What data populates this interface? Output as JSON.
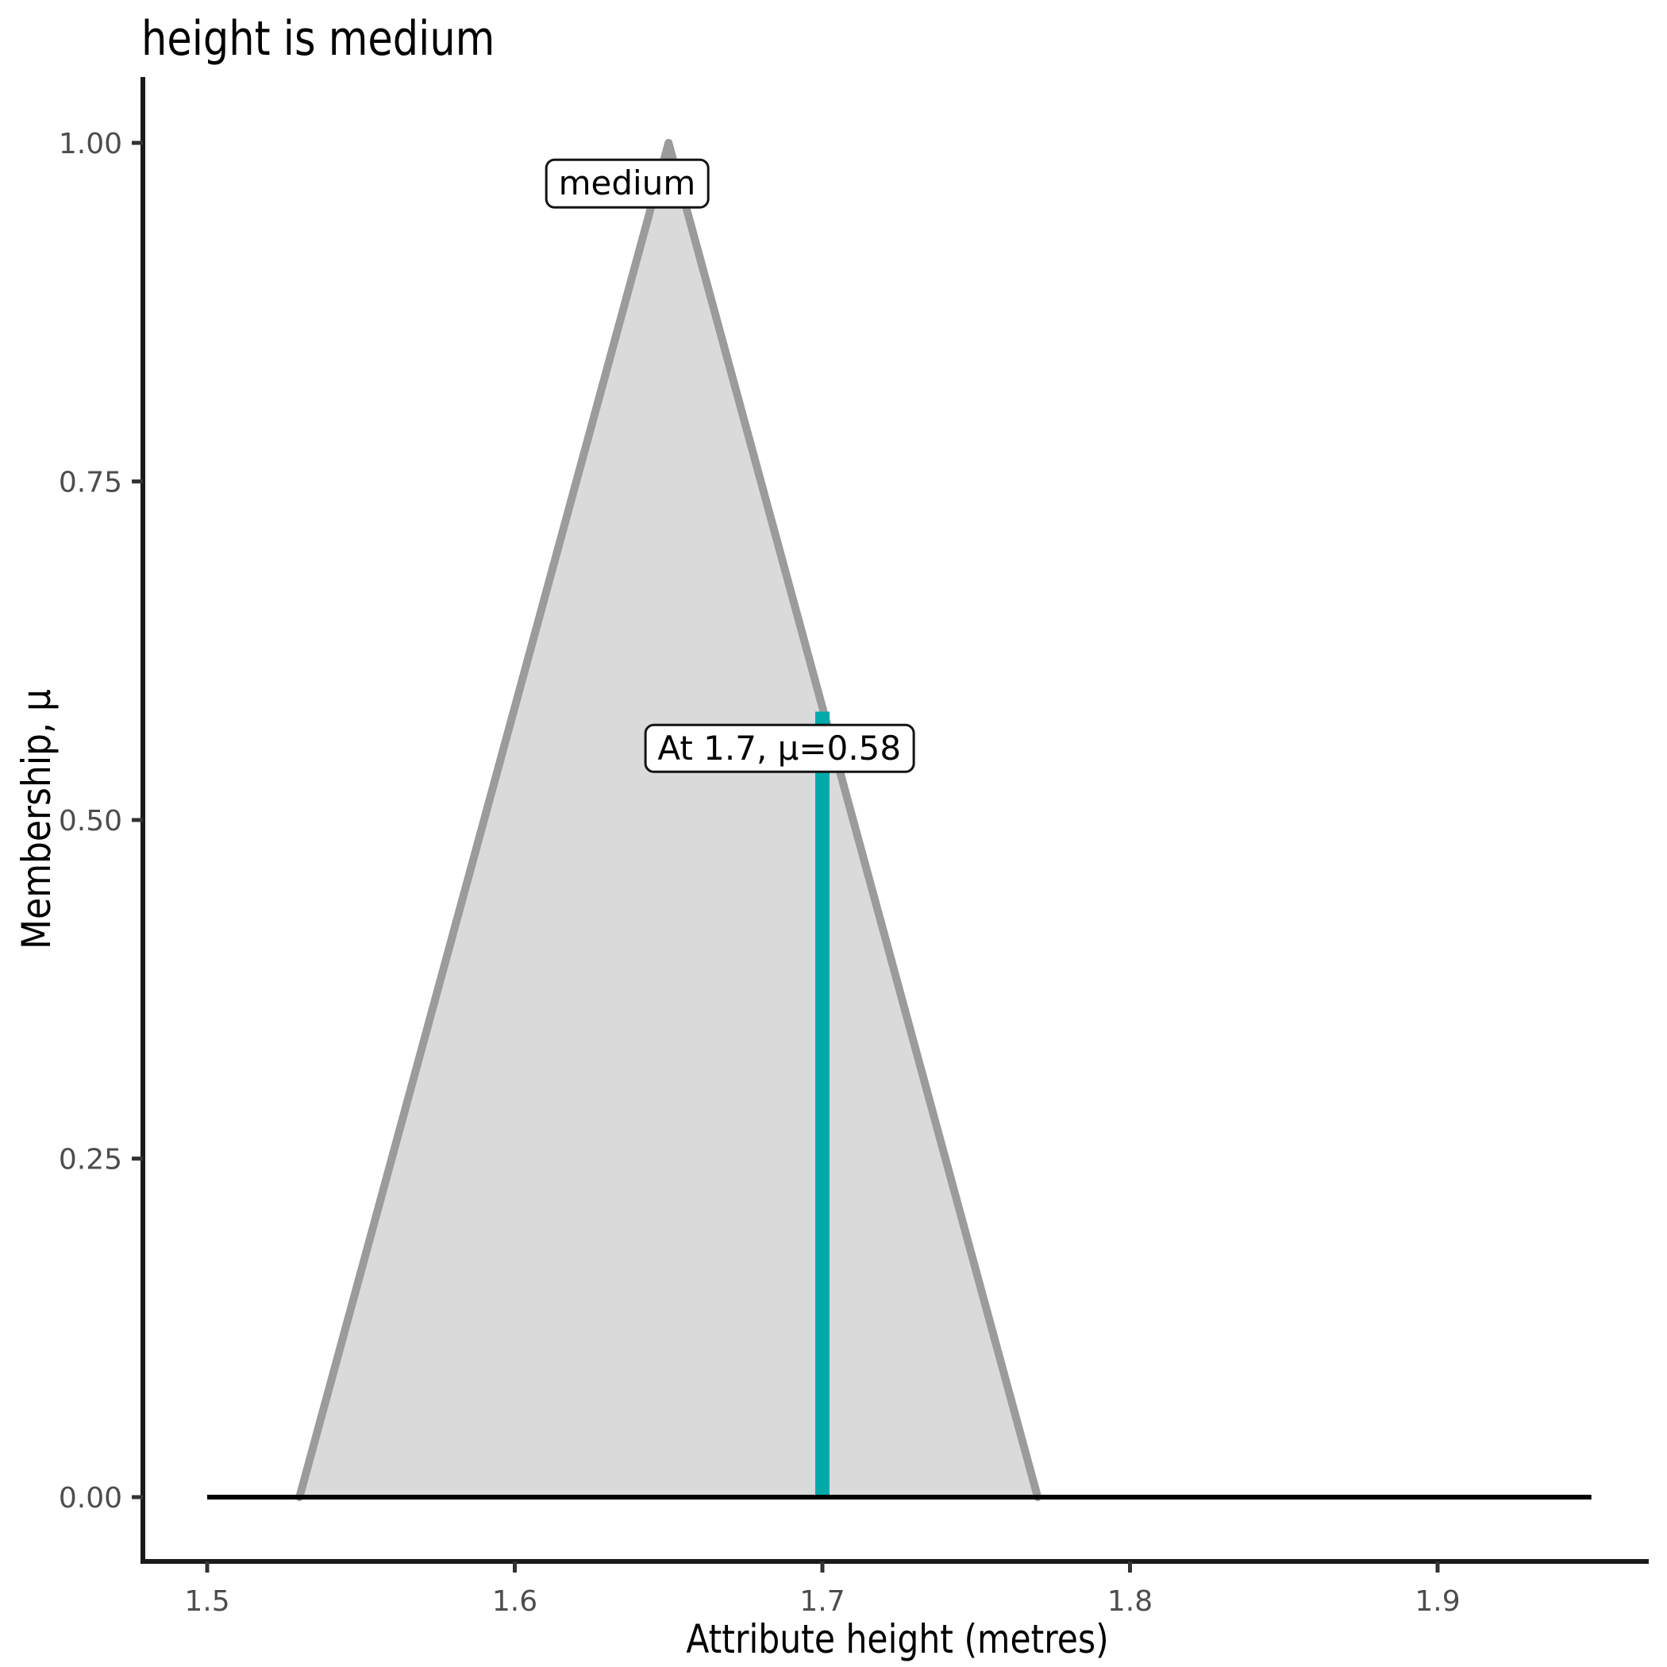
{
  "plot": {
    "title": "height is medium",
    "x_axis_title": "Attribute height (metres)",
    "y_axis_title": "Membership, μ"
  },
  "chart_data": {
    "type": "area",
    "title": "height is medium",
    "xlabel": "Attribute height (metres)",
    "ylabel": "Membership, μ",
    "xlim": [
      1.479,
      1.971
    ],
    "ylim": [
      -0.048,
      1.049
    ],
    "grid": false,
    "legend": "none",
    "x_ticks": {
      "values": [
        1.5,
        1.6,
        1.7,
        1.8,
        1.9
      ],
      "labels": [
        "1.5",
        "1.6",
        "1.7",
        "1.8",
        "1.9"
      ]
    },
    "y_ticks": {
      "values": [
        0,
        0.25,
        0.5,
        0.75,
        1
      ],
      "labels": [
        "0.00",
        "0.25",
        "0.50",
        "0.75",
        "1.00"
      ]
    },
    "series": [
      {
        "name": "medium",
        "type": "triangular-membership",
        "x": [
          1.53,
          1.65,
          1.77
        ],
        "y": [
          0,
          1,
          0
        ],
        "fill": "#DADADA",
        "stroke": "#9B9B9B",
        "stroke_width": 10
      }
    ],
    "baseline": {
      "mu": 0,
      "x_start": 1.5,
      "x_end": 1.95,
      "color": "#000000",
      "width": 6
    },
    "crisp_line": {
      "x": 1.7,
      "mu": 0.58,
      "color": "#00AAAB",
      "width": 18
    },
    "annotations": [
      {
        "id": "set-label",
        "text": "medium",
        "x": 1.6365,
        "mu": 0.97
      },
      {
        "id": "value-label",
        "text": "At 1.7, μ=0.58",
        "x": 1.686,
        "mu": 0.553
      }
    ],
    "colors": {
      "axis": "#1A1A1A",
      "tick": "#333333",
      "tick_label": "#4D4D4D",
      "text": "#000000"
    }
  }
}
